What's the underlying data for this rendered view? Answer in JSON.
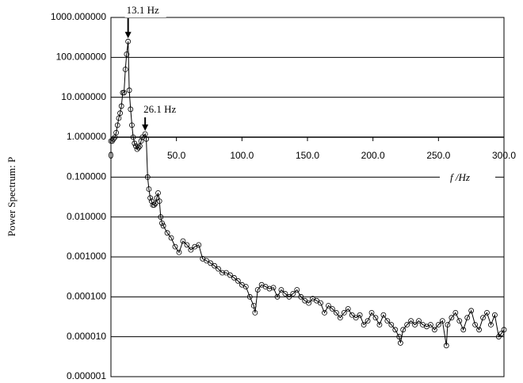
{
  "chart_data": {
    "type": "scatter-line",
    "y_label": "Power Spectrum: P",
    "x_label": "f  /Hz",
    "log_y": true,
    "grid": true,
    "x_axis_crosses": 1,
    "color": "#000000",
    "xlim": [
      0,
      300
    ],
    "ylim": [
      1e-06,
      1000
    ],
    "xticks": [
      0,
      {
        "value": 50,
        "label": "50.0"
      },
      {
        "value": 100,
        "label": "100.0"
      },
      {
        "value": 150,
        "label": "150.0"
      },
      {
        "value": 200,
        "label": "200.0"
      },
      {
        "value": 250,
        "label": "250.0"
      },
      {
        "value": 300,
        "label": "300.0"
      }
    ],
    "yticks": [
      {
        "value": 1e-06,
        "label": "0.000001"
      },
      {
        "value": 1e-05,
        "label": "0.000010"
      },
      {
        "value": 0.0001,
        "label": "0.000100"
      },
      {
        "value": 0.001,
        "label": "0.001000"
      },
      {
        "value": 0.01,
        "label": "0.010000"
      },
      {
        "value": 0.1,
        "label": "0.100000"
      },
      {
        "value": 1,
        "label": "1.000000"
      },
      {
        "value": 10,
        "label": "10.000000"
      },
      {
        "value": 100,
        "label": "100.000000"
      },
      {
        "value": 1000,
        "label": "1000.000000"
      }
    ],
    "annotations": [
      {
        "text": "13.1 Hz",
        "x": 13.1
      },
      {
        "text": "26.1 Hz",
        "x": 26.1
      }
    ],
    "x": [
      0,
      1,
      2,
      3,
      4,
      5,
      6,
      7,
      8,
      9,
      10,
      11,
      12,
      13.1,
      14,
      15,
      16,
      17,
      18,
      19,
      20,
      21,
      22,
      23,
      24,
      26.1,
      27,
      28,
      29,
      30,
      31,
      32,
      33,
      34,
      35,
      36,
      37,
      38,
      39,
      40,
      43,
      46,
      49,
      52,
      55,
      58,
      61,
      64,
      67,
      70,
      73,
      76,
      79,
      82,
      85,
      88,
      91,
      94,
      97,
      100,
      103,
      106,
      109,
      110,
      112,
      115,
      118,
      121,
      124,
      127,
      130,
      133,
      136,
      139,
      142,
      145,
      148,
      151,
      154,
      157,
      160,
      163,
      166,
      169,
      172,
      175,
      178,
      181,
      184,
      187,
      190,
      193,
      196,
      199,
      202,
      205,
      208,
      211,
      214,
      217,
      220,
      221,
      223,
      226,
      229,
      232,
      235,
      238,
      241,
      244,
      247,
      250,
      253,
      256,
      257,
      260,
      263,
      266,
      269,
      272,
      275,
      278,
      281,
      284,
      287,
      290,
      293,
      296,
      298,
      300
    ],
    "values": [
      0.8,
      0.8,
      0.9,
      1.0,
      1.3,
      2,
      3,
      4,
      6,
      13,
      13,
      50,
      120,
      250,
      15,
      5,
      2,
      1,
      0.7,
      0.6,
      0.5,
      0.55,
      0.6,
      0.8,
      1.0,
      1.2,
      0.9,
      0.1,
      0.05,
      0.03,
      0.025,
      0.02,
      0.02,
      0.022,
      0.03,
      0.04,
      0.025,
      0.01,
      0.007,
      0.006,
      0.004,
      0.003,
      0.0018,
      0.0013,
      0.0025,
      0.002,
      0.0015,
      0.0018,
      0.002,
      0.0009,
      0.0008,
      0.0007,
      0.0006,
      0.0005,
      0.0004,
      0.0004,
      0.00035,
      0.0003,
      0.00025,
      0.0002,
      0.00018,
      0.0001,
      6e-05,
      4e-05,
      0.00015,
      0.0002,
      0.00018,
      0.00016,
      0.00017,
      0.0001,
      0.00015,
      0.00012,
      0.0001,
      0.00012,
      0.00015,
      0.0001,
      8e-05,
      7e-05,
      9e-05,
      8e-05,
      7e-05,
      4e-05,
      6e-05,
      5e-05,
      4e-05,
      3e-05,
      4e-05,
      5e-05,
      3.5e-05,
      3e-05,
      3.5e-05,
      2e-05,
      2.5e-05,
      4e-05,
      3e-05,
      2e-05,
      3.5e-05,
      2.5e-05,
      2e-05,
      1.5e-05,
      1e-05,
      7e-06,
      1.5e-05,
      2e-05,
      2.5e-05,
      2e-05,
      2.5e-05,
      2e-05,
      1.8e-05,
      2e-05,
      1.5e-05,
      2e-05,
      2.5e-05,
      6e-06,
      2e-05,
      3e-05,
      4e-05,
      2.5e-05,
      1.5e-05,
      3e-05,
      4.5e-05,
      2e-05,
      1.5e-05,
      3e-05,
      4e-05,
      2e-05,
      3.5e-05,
      1e-05,
      1.2e-05,
      1.5e-05
    ]
  }
}
